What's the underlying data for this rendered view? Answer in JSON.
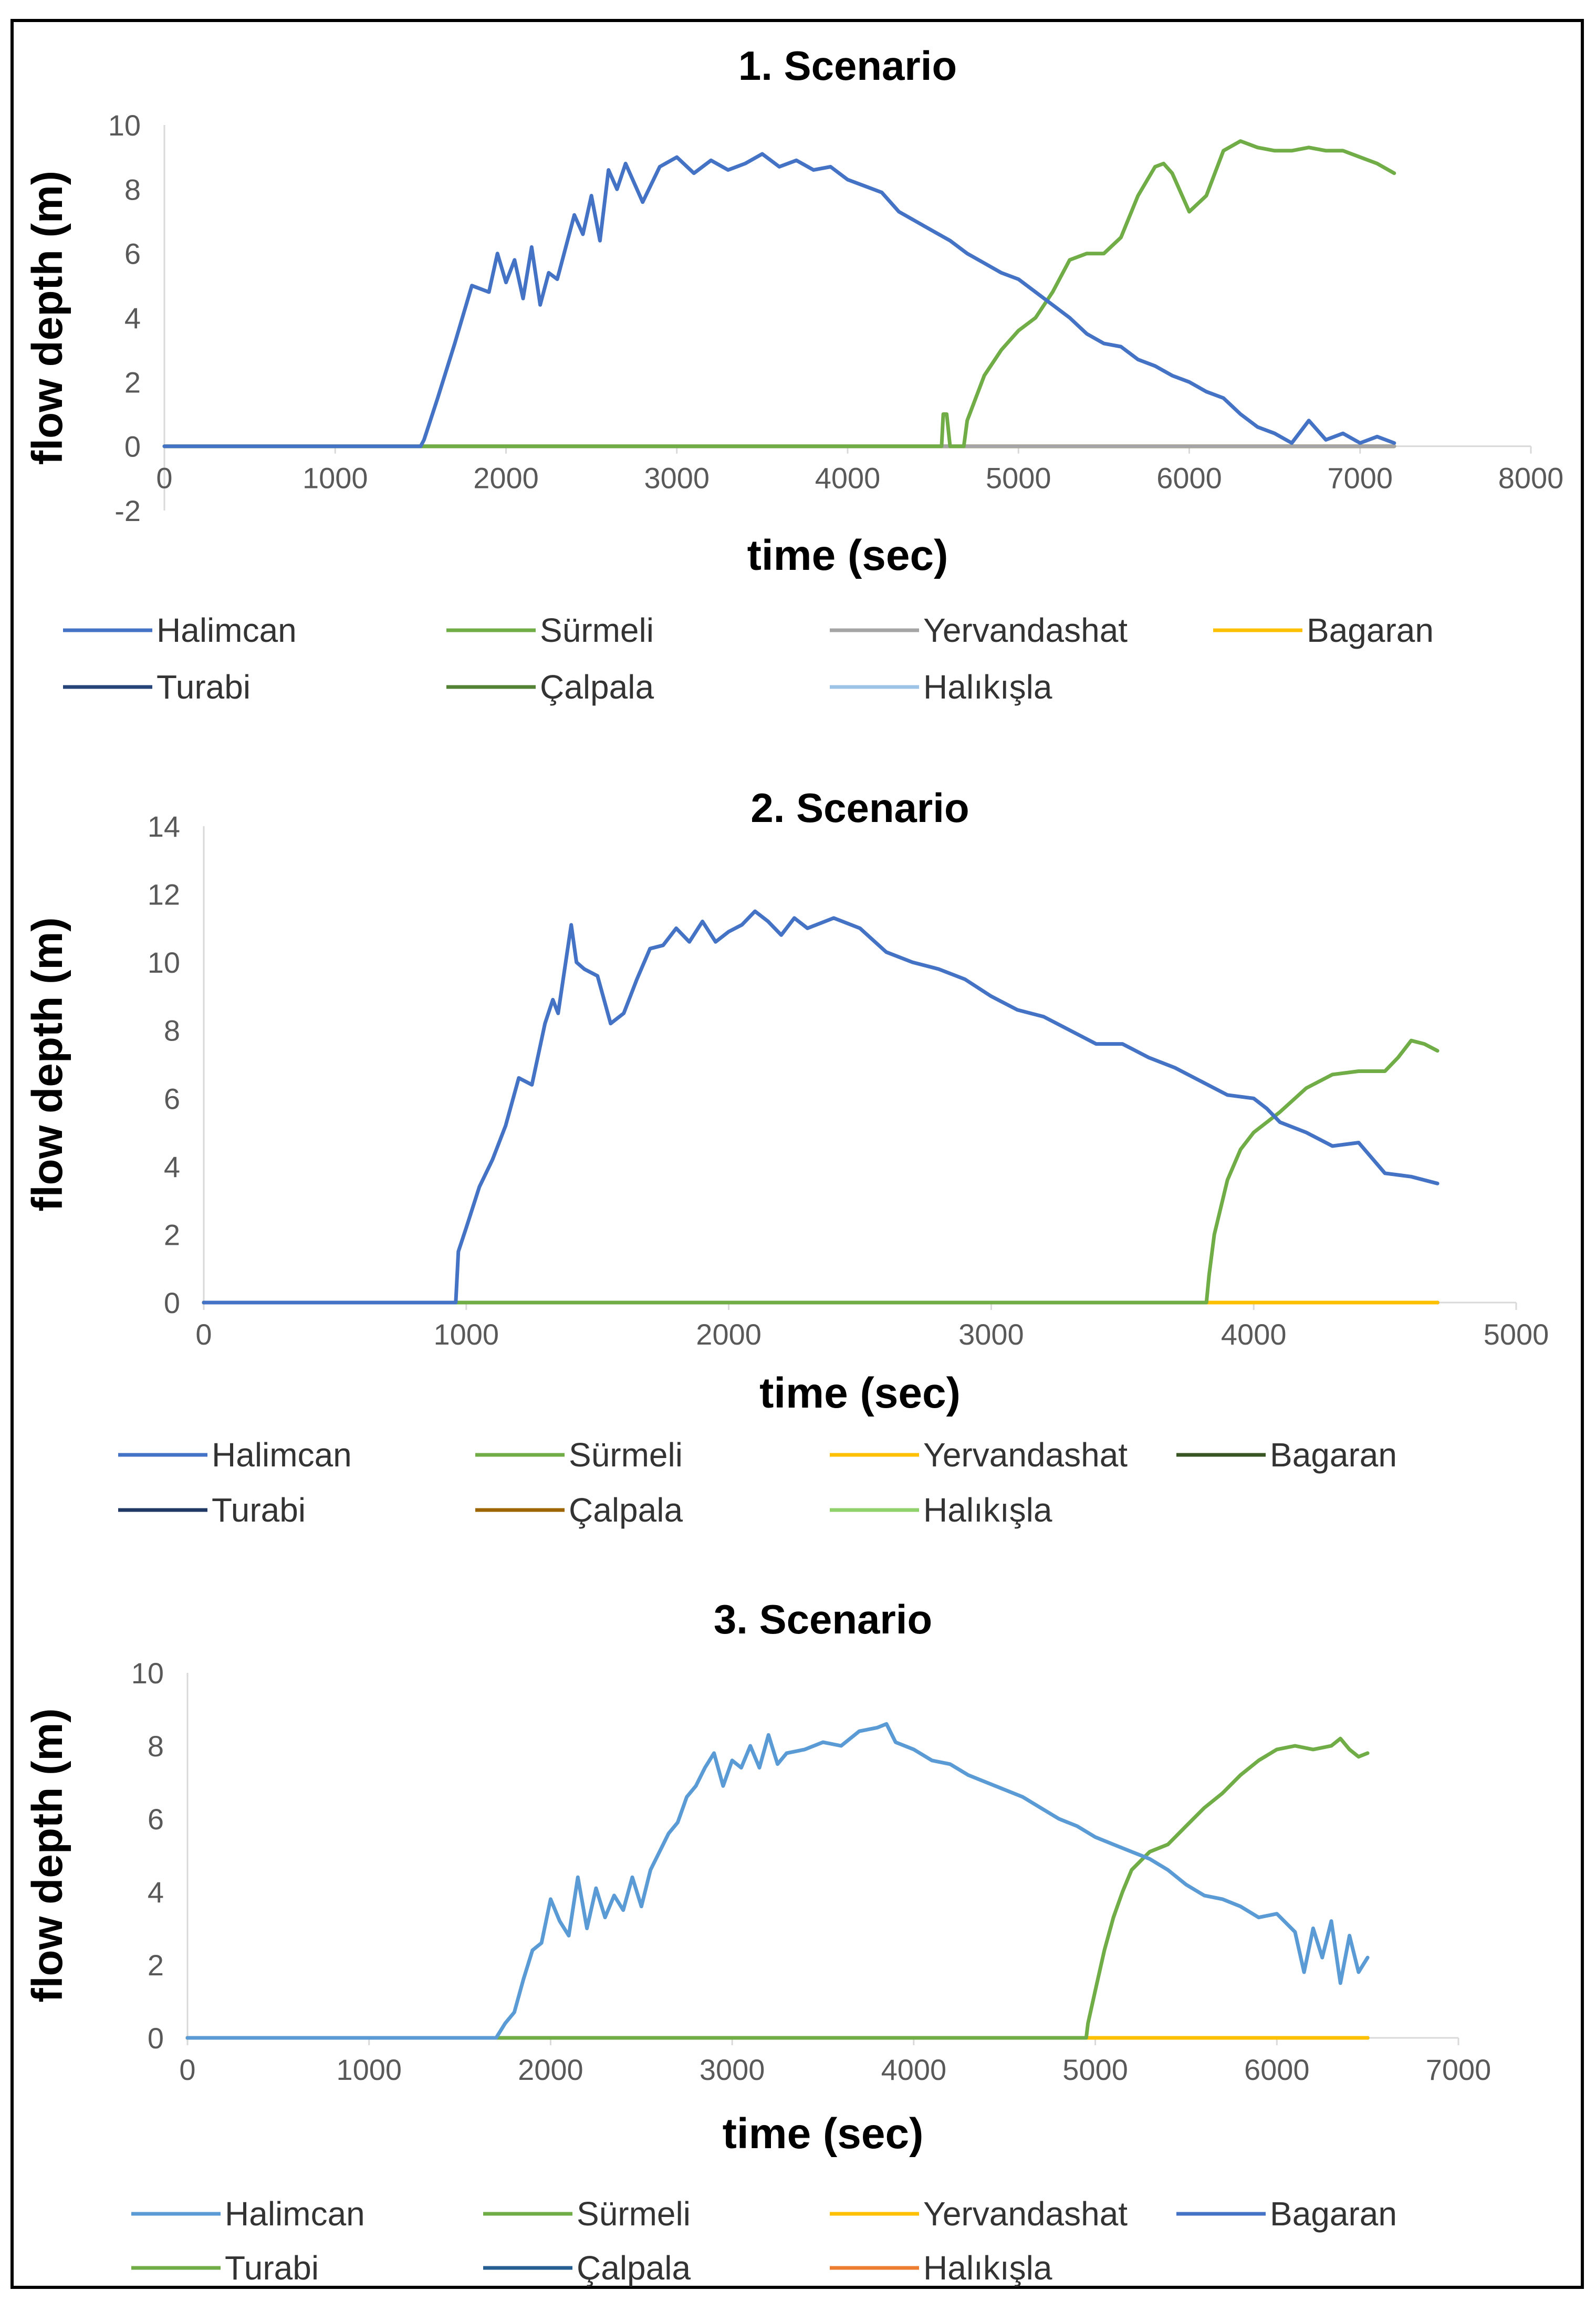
{
  "chart_data": [
    {
      "type": "line",
      "title": "1. Scenario",
      "xlabel": "time (sec)",
      "ylabel": "flow depth (m)",
      "xlim": [
        0,
        8000
      ],
      "ylim": [
        -2,
        10
      ],
      "xticks": [
        0,
        1000,
        2000,
        3000,
        4000,
        5000,
        6000,
        7000,
        8000
      ],
      "yticks": [
        -2,
        0,
        2,
        4,
        6,
        8,
        10
      ],
      "grid": false,
      "legend": "bottom",
      "series": [
        {
          "name": "Halimcan",
          "color": "#4472C4",
          "x": [
            0,
            1500,
            1520,
            1600,
            1700,
            1800,
            1900,
            1950,
            2000,
            2050,
            2100,
            2150,
            2200,
            2250,
            2300,
            2400,
            2450,
            2500,
            2550,
            2600,
            2650,
            2700,
            2800,
            2900,
            3000,
            3100,
            3200,
            3300,
            3400,
            3500,
            3600,
            3700,
            3800,
            3900,
            4000,
            4100,
            4200,
            4300,
            4400,
            4500,
            4600,
            4700,
            4800,
            4900,
            5000,
            5100,
            5200,
            5300,
            5400,
            5500,
            5600,
            5700,
            5800,
            5900,
            6000,
            6100,
            6200,
            6300,
            6400,
            6500,
            6600,
            6700,
            6800,
            6900,
            7000,
            7100,
            7200
          ],
          "y": [
            0,
            0,
            0.2,
            1.5,
            3.2,
            5.0,
            4.8,
            6.0,
            5.1,
            5.8,
            4.6,
            6.2,
            4.4,
            5.4,
            5.2,
            7.2,
            6.6,
            7.8,
            6.4,
            8.6,
            8.0,
            8.8,
            7.6,
            8.7,
            9.0,
            8.5,
            8.9,
            8.6,
            8.8,
            9.1,
            8.7,
            8.9,
            8.6,
            8.7,
            8.3,
            8.1,
            7.9,
            7.3,
            7.0,
            6.7,
            6.4,
            6.0,
            5.7,
            5.4,
            5.2,
            4.8,
            4.4,
            4.0,
            3.5,
            3.2,
            3.1,
            2.7,
            2.5,
            2.2,
            2.0,
            1.7,
            1.5,
            1.0,
            0.6,
            0.4,
            0.1,
            0.8,
            0.2,
            0.4,
            0.1,
            0.3,
            0.1
          ]
        },
        {
          "name": "Sürmeli",
          "color": "#70AD47",
          "x": [
            0,
            4550,
            4560,
            4580,
            4600,
            4680,
            4700,
            4800,
            4900,
            5000,
            5100,
            5200,
            5300,
            5400,
            5500,
            5600,
            5700,
            5800,
            5850,
            5900,
            6000,
            6100,
            6200,
            6300,
            6400,
            6500,
            6600,
            6700,
            6800,
            6900,
            7000,
            7100,
            7200
          ],
          "y": [
            0,
            0,
            1.0,
            1.0,
            0,
            0,
            0.8,
            2.2,
            3.0,
            3.6,
            4.0,
            4.8,
            5.8,
            6.0,
            6.0,
            6.5,
            7.8,
            8.7,
            8.8,
            8.5,
            7.3,
            7.8,
            9.2,
            9.5,
            9.3,
            9.2,
            9.2,
            9.3,
            9.2,
            9.2,
            9.0,
            8.8,
            8.5
          ]
        },
        {
          "name": "Yervandashat",
          "color": "#A5A5A5",
          "x": [
            0,
            7200
          ],
          "y": [
            0,
            0
          ]
        },
        {
          "name": "Bagaran",
          "color": "#FFC000",
          "x": [
            0,
            7200
          ],
          "y": [
            0,
            0
          ]
        },
        {
          "name": "Turabi",
          "color": "#264478",
          "x": [
            0,
            7200
          ],
          "y": [
            0,
            0
          ]
        },
        {
          "name": "Çalpala",
          "color": "#548235",
          "x": [
            0,
            7200
          ],
          "y": [
            0,
            0
          ]
        },
        {
          "name": "Halıkışla",
          "color": "#9DC3E6",
          "x": [
            0,
            1000
          ],
          "y": [
            0,
            0
          ]
        }
      ]
    },
    {
      "type": "line",
      "title": "2. Scenario",
      "xlabel": "time (sec)",
      "ylabel": "flow depth (m)",
      "xlim": [
        0,
        5000
      ],
      "ylim": [
        0,
        14
      ],
      "xticks": [
        0,
        1000,
        2000,
        3000,
        4000,
        5000
      ],
      "yticks": [
        0,
        2,
        4,
        6,
        8,
        10,
        12,
        14
      ],
      "grid": false,
      "legend": "bottom",
      "series": [
        {
          "name": "Halimcan",
          "color": "#4472C4",
          "x": [
            0,
            960,
            970,
            1000,
            1050,
            1100,
            1150,
            1200,
            1250,
            1300,
            1330,
            1350,
            1400,
            1420,
            1450,
            1500,
            1550,
            1600,
            1650,
            1700,
            1750,
            1800,
            1850,
            1900,
            1950,
            2000,
            2050,
            2100,
            2150,
            2200,
            2250,
            2300,
            2400,
            2500,
            2600,
            2700,
            2800,
            2900,
            3000,
            3100,
            3200,
            3300,
            3400,
            3500,
            3600,
            3700,
            3800,
            3900,
            4000,
            4050,
            4100,
            4200,
            4300,
            4400,
            4500,
            4600,
            4650,
            4700
          ],
          "y": [
            0,
            0,
            1.5,
            2.2,
            3.4,
            4.2,
            5.2,
            6.6,
            6.4,
            8.2,
            8.9,
            8.5,
            11.1,
            10.0,
            9.8,
            9.6,
            8.2,
            8.5,
            9.5,
            10.4,
            10.5,
            11.0,
            10.6,
            11.2,
            10.6,
            10.9,
            11.1,
            11.5,
            11.2,
            10.8,
            11.3,
            11.0,
            11.3,
            11.0,
            10.3,
            10.0,
            9.8,
            9.5,
            9.0,
            8.6,
            8.4,
            8.0,
            7.6,
            7.6,
            7.2,
            6.9,
            6.5,
            6.1,
            6.0,
            5.7,
            5.3,
            5.0,
            4.6,
            4.7,
            3.8,
            3.7,
            3.6,
            3.5
          ]
        },
        {
          "name": "Sürmeli",
          "color": "#70AD47",
          "x": [
            0,
            3820,
            3830,
            3850,
            3900,
            3950,
            4000,
            4100,
            4200,
            4300,
            4400,
            4500,
            4550,
            4600,
            4650,
            4700
          ],
          "y": [
            0,
            0,
            0.8,
            2.0,
            3.6,
            4.5,
            5.0,
            5.6,
            6.3,
            6.7,
            6.8,
            6.8,
            7.2,
            7.7,
            7.6,
            7.4
          ]
        },
        {
          "name": "Yervandashat",
          "color": "#FFC000",
          "x": [
            0,
            4700
          ],
          "y": [
            0,
            0
          ]
        },
        {
          "name": "Bagaran",
          "color": "#375623",
          "x": [
            0,
            4700
          ],
          "y": [
            0,
            0
          ]
        },
        {
          "name": "Turabi",
          "color": "#1F3864",
          "x": [
            0,
            4700
          ],
          "y": [
            0,
            0
          ]
        },
        {
          "name": "Çalpala",
          "color": "#9C6500",
          "x": [
            0,
            4700
          ],
          "y": [
            0,
            0
          ]
        },
        {
          "name": "Halıkışla",
          "color": "#8FD16A",
          "x": [
            0,
            4700
          ],
          "y": [
            0,
            0
          ]
        }
      ]
    },
    {
      "type": "line",
      "title": "3. Scenario",
      "xlabel": "time (sec)",
      "ylabel": "flow depth (m)",
      "xlim": [
        0,
        7000
      ],
      "ylim": [
        0,
        10
      ],
      "xticks": [
        0,
        1000,
        2000,
        3000,
        4000,
        5000,
        6000,
        7000
      ],
      "yticks": [
        0,
        2,
        4,
        6,
        8,
        10
      ],
      "grid": false,
      "legend": "bottom",
      "series": [
        {
          "name": "Halimcan",
          "color": "#5B9BD5",
          "x": [
            0,
            1700,
            1750,
            1800,
            1850,
            1900,
            1950,
            2000,
            2050,
            2100,
            2150,
            2200,
            2250,
            2300,
            2350,
            2400,
            2450,
            2500,
            2550,
            2600,
            2650,
            2700,
            2750,
            2800,
            2850,
            2900,
            2950,
            3000,
            3050,
            3100,
            3150,
            3200,
            3250,
            3300,
            3400,
            3500,
            3600,
            3700,
            3800,
            3850,
            3900,
            4000,
            4100,
            4200,
            4300,
            4400,
            4500,
            4600,
            4700,
            4800,
            4900,
            5000,
            5100,
            5200,
            5300,
            5400,
            5500,
            5600,
            5700,
            5800,
            5900,
            6000,
            6100,
            6150,
            6200,
            6250,
            6300,
            6350,
            6400,
            6450,
            6500
          ],
          "y": [
            0,
            0,
            0.4,
            0.7,
            1.6,
            2.4,
            2.6,
            3.8,
            3.2,
            2.8,
            4.4,
            3.0,
            4.1,
            3.3,
            3.9,
            3.5,
            4.4,
            3.6,
            4.6,
            5.1,
            5.6,
            5.9,
            6.6,
            6.9,
            7.4,
            7.8,
            6.9,
            7.6,
            7.4,
            8.0,
            7.4,
            8.3,
            7.5,
            7.8,
            7.9,
            8.1,
            8.0,
            8.4,
            8.5,
            8.6,
            8.1,
            7.9,
            7.6,
            7.5,
            7.2,
            7.0,
            6.8,
            6.6,
            6.3,
            6.0,
            5.8,
            5.5,
            5.3,
            5.1,
            4.9,
            4.6,
            4.2,
            3.9,
            3.8,
            3.6,
            3.3,
            3.4,
            2.9,
            1.8,
            3.0,
            2.2,
            3.2,
            1.5,
            2.8,
            1.8,
            2.2
          ]
        },
        {
          "name": "Sürmeli",
          "color": "#70AD47",
          "x": [
            0,
            4950,
            4960,
            5000,
            5050,
            5100,
            5150,
            5200,
            5300,
            5400,
            5500,
            5600,
            5700,
            5800,
            5900,
            6000,
            6100,
            6200,
            6300,
            6350,
            6400,
            6450,
            6500
          ],
          "y": [
            0,
            0,
            0.4,
            1.3,
            2.4,
            3.3,
            4.0,
            4.6,
            5.1,
            5.3,
            5.8,
            6.3,
            6.7,
            7.2,
            7.6,
            7.9,
            8.0,
            7.9,
            8.0,
            8.2,
            7.9,
            7.7,
            7.8
          ]
        },
        {
          "name": "Yervandashat",
          "color": "#FFC000",
          "x": [
            0,
            6500
          ],
          "y": [
            0,
            0
          ]
        },
        {
          "name": "Bagaran",
          "color": "#4472C4",
          "x": [
            0,
            6500
          ],
          "y": [
            0,
            0
          ]
        },
        {
          "name": "Turabi",
          "color": "#70AD47",
          "x": [
            0,
            6500
          ],
          "y": [
            0,
            0
          ]
        },
        {
          "name": "Çalpala",
          "color": "#255E91",
          "x": [
            0,
            6500
          ],
          "y": [
            0,
            0
          ]
        },
        {
          "name": "Halıkışla",
          "color": "#ED7D31",
          "x": [
            0,
            1000
          ],
          "y": [
            0,
            0
          ]
        }
      ]
    }
  ]
}
